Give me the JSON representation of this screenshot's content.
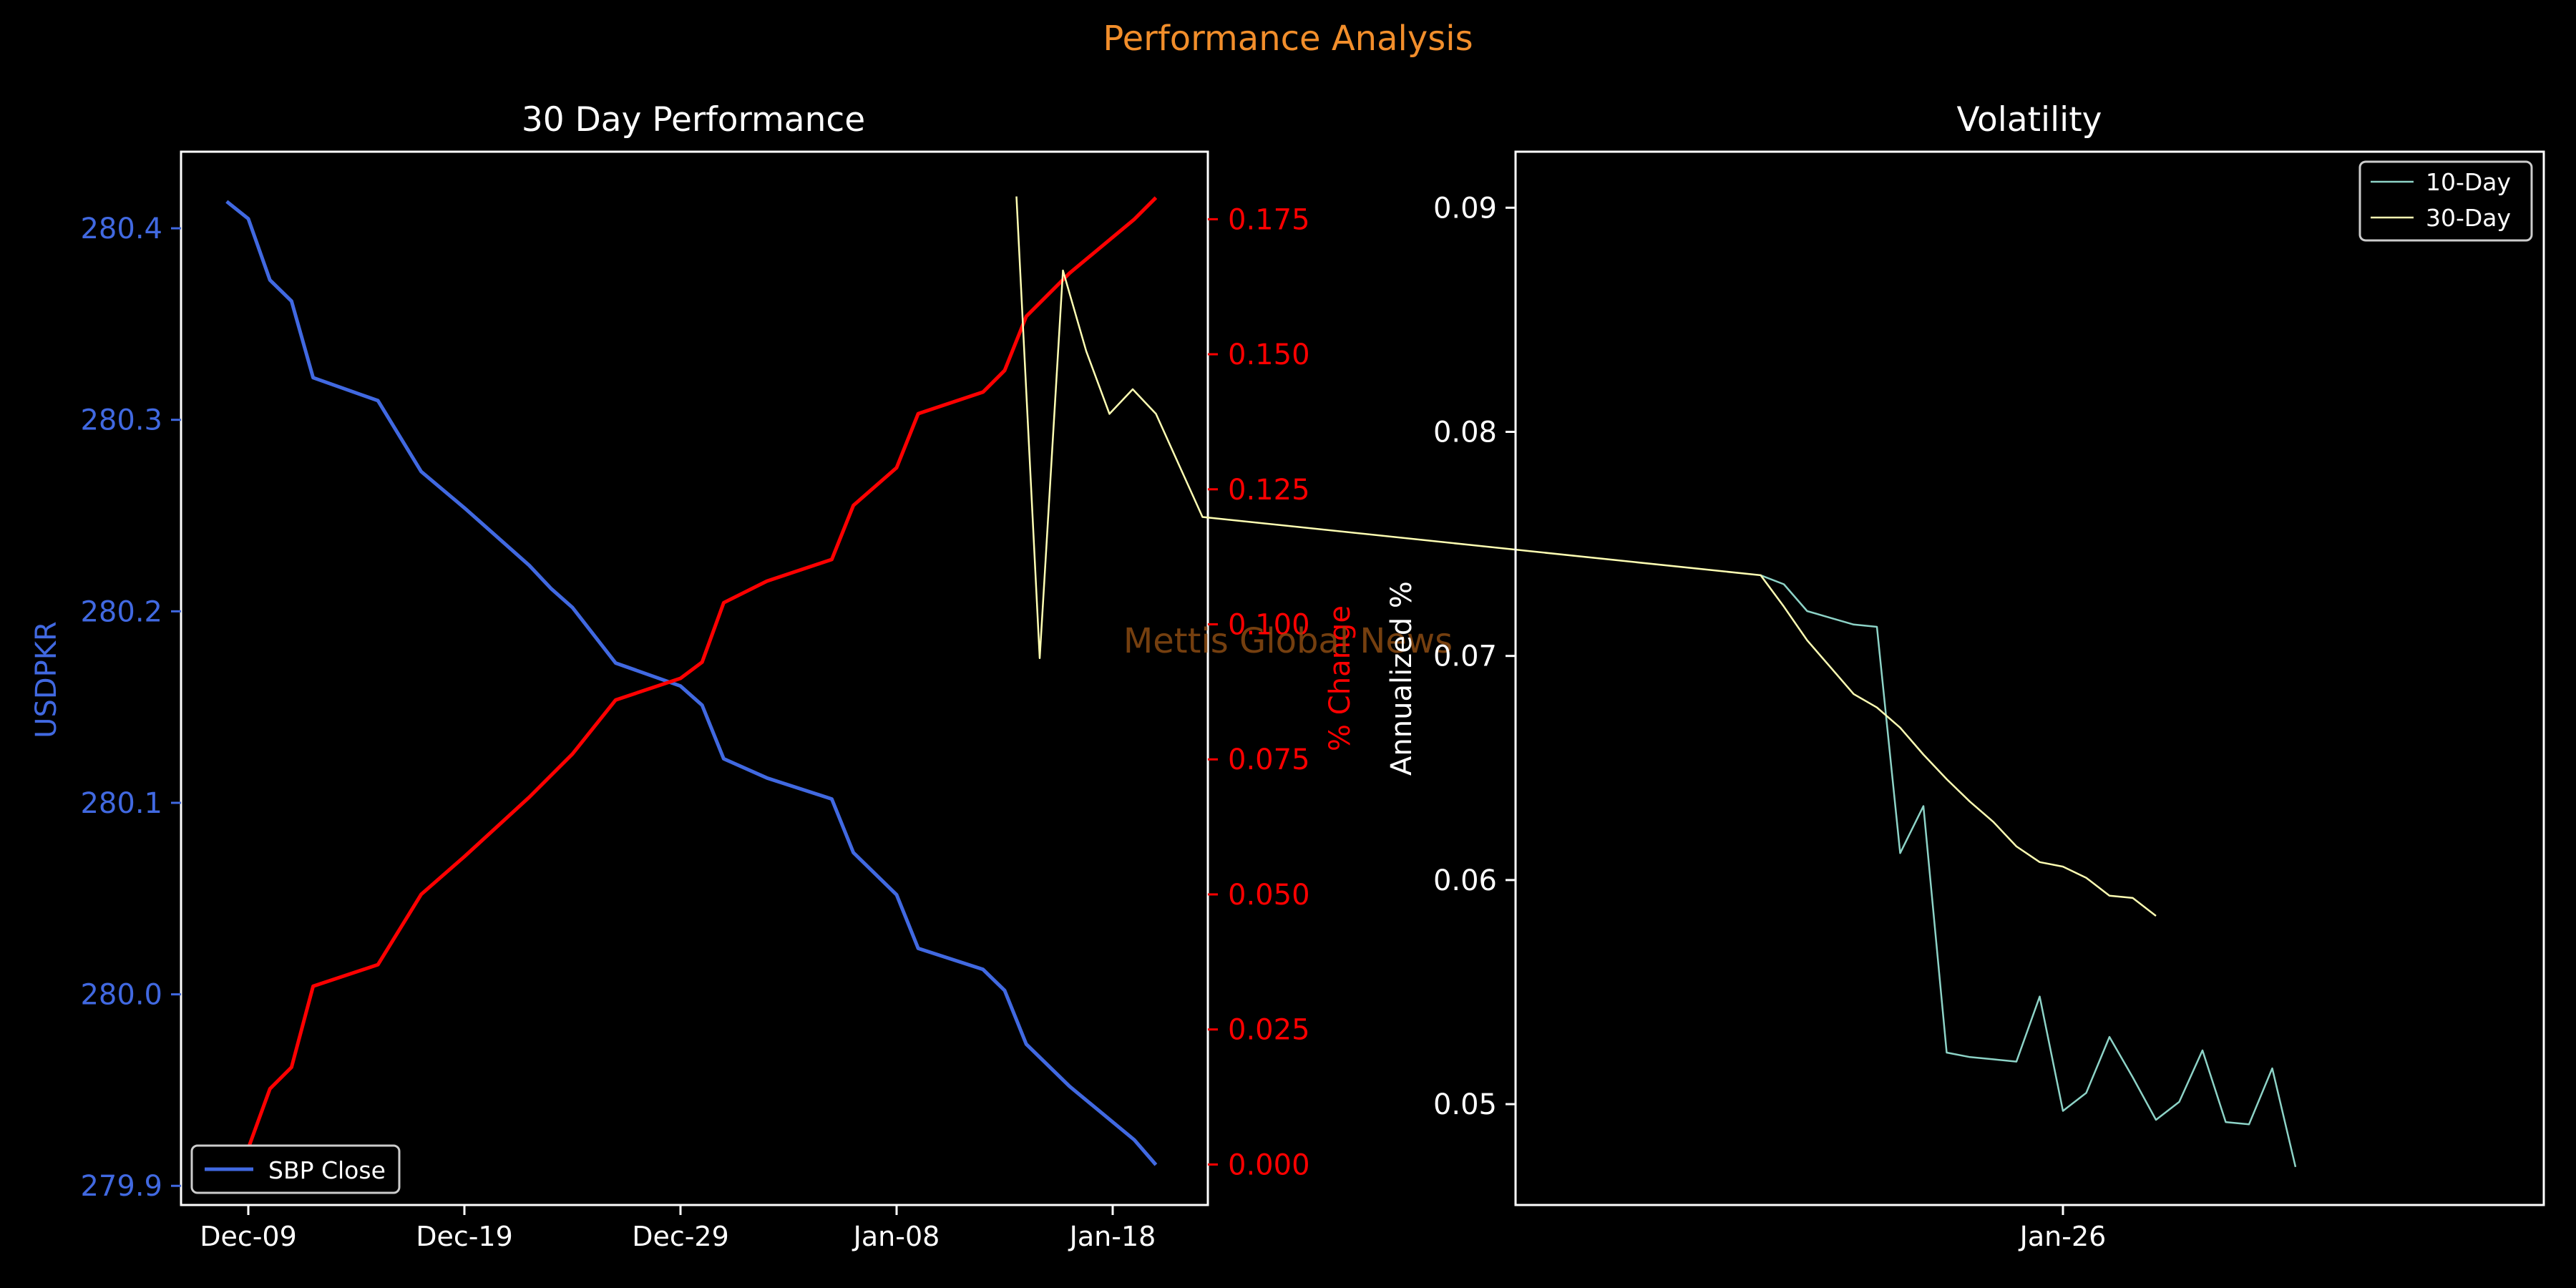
{
  "figure": {
    "suptitle": "Performance Analysis",
    "watermark": "Mettis Global News",
    "colors": {
      "background": "#000000",
      "suptitle": "#f28e2b",
      "price": "#4169e1",
      "pct": "#ff0000",
      "vol10": "#8dd3c7",
      "vol30": "#ffffb3",
      "text": "#ffffff",
      "watermark": "#8a4b12"
    }
  },
  "chart_data": [
    {
      "type": "line",
      "title": "30 Day Performance",
      "ylabel": "USDPKR",
      "ylabel_right": "% Change",
      "x_ticks": [
        "Dec-09",
        "Dec-19",
        "Dec-29",
        "Jan-08",
        "Jan-18"
      ],
      "left_axis": {
        "ylim": [
          279.89,
          280.44
        ],
        "ticks": [
          "279.9",
          "280.0",
          "280.1",
          "280.2",
          "280.3",
          "280.4"
        ]
      },
      "right_axis": {
        "ylim": [
          -0.0075,
          0.1875
        ],
        "ticks": [
          "0.000",
          "0.025",
          "0.050",
          "0.075",
          "0.100",
          "0.125",
          "0.150",
          "0.175"
        ]
      },
      "legend": {
        "placement": "lower-left",
        "entries": [
          "SBP Close"
        ]
      },
      "series": [
        {
          "name": "SBP Close",
          "axis": "left",
          "points": [
            [
              "Dec-08",
              280.414
            ],
            [
              "Dec-09",
              280.405
            ],
            [
              "Dec-10",
              280.373
            ],
            [
              "Dec-11",
              280.362
            ],
            [
              "Dec-12",
              280.322
            ],
            [
              "Dec-15",
              280.31
            ],
            [
              "Dec-17",
              280.273
            ],
            [
              "Dec-19",
              280.254
            ],
            [
              "Dec-22",
              280.224
            ],
            [
              "Dec-23",
              280.212
            ],
            [
              "Dec-24",
              280.202
            ],
            [
              "Dec-26",
              280.173
            ],
            [
              "Dec-29",
              280.161
            ],
            [
              "Dec-30",
              280.151
            ],
            [
              "Dec-31",
              280.123
            ],
            [
              "Jan-02",
              280.113
            ],
            [
              "Jan-05",
              280.102
            ],
            [
              "Jan-06",
              280.074
            ],
            [
              "Jan-08",
              280.052
            ],
            [
              "Jan-09",
              280.024
            ],
            [
              "Jan-12",
              280.013
            ],
            [
              "Jan-13",
              280.002
            ],
            [
              "Jan-14",
              279.974
            ],
            [
              "Jan-16",
              279.952
            ],
            [
              "Jan-19",
              279.924
            ],
            [
              "Jan-20",
              279.911
            ]
          ]
        },
        {
          "name": "% Change",
          "axis": "right",
          "points": [
            [
              "Dec-08",
              0.0
            ],
            [
              "Dec-09",
              0.003
            ],
            [
              "Dec-10",
              0.014
            ],
            [
              "Dec-11",
              0.018
            ],
            [
              "Dec-12",
              0.033
            ],
            [
              "Dec-15",
              0.037
            ],
            [
              "Dec-17",
              0.05
            ],
            [
              "Dec-19",
              0.057
            ],
            [
              "Dec-22",
              0.068
            ],
            [
              "Dec-23",
              0.072
            ],
            [
              "Dec-24",
              0.076
            ],
            [
              "Dec-26",
              0.086
            ],
            [
              "Dec-29",
              0.09
            ],
            [
              "Dec-30",
              0.093
            ],
            [
              "Dec-31",
              0.104
            ],
            [
              "Jan-02",
              0.108
            ],
            [
              "Jan-05",
              0.112
            ],
            [
              "Jan-06",
              0.122
            ],
            [
              "Jan-08",
              0.129
            ],
            [
              "Jan-09",
              0.139
            ],
            [
              "Jan-12",
              0.143
            ],
            [
              "Jan-13",
              0.147
            ],
            [
              "Jan-14",
              0.157
            ],
            [
              "Jan-16",
              0.165
            ],
            [
              "Jan-19",
              0.175
            ],
            [
              "Jan-20",
              0.179
            ]
          ]
        }
      ]
    },
    {
      "type": "line",
      "title": "Volatility",
      "ylabel": "Annualized %",
      "x_ticks": [
        "Jan-26"
      ],
      "ylim": [
        0.0455,
        0.0925
      ],
      "y_ticks": [
        "0.05",
        "0.06",
        "0.07",
        "0.08",
        "0.09"
      ],
      "legend": {
        "placement": "top-right",
        "entries": [
          "10-Day",
          "30-Day"
        ]
      },
      "series": [
        {
          "name": "10-Day",
          "points": [
            [
              "Jan-13",
              0.0736
            ],
            [
              "Jan-14",
              0.0732
            ],
            [
              "Jan-15",
              0.072
            ],
            [
              "Jan-16",
              0.0717
            ],
            [
              "Jan-17",
              0.0714
            ],
            [
              "Jan-18",
              0.0713
            ],
            [
              "Jan-19",
              0.0612
            ],
            [
              "Jan-20",
              0.0633
            ],
            [
              "Jan-21",
              0.0523
            ],
            [
              "Jan-22",
              0.0521
            ],
            [
              "Jan-23",
              0.052
            ],
            [
              "Jan-24",
              0.0519
            ],
            [
              "Jan-25",
              0.0548
            ],
            [
              "Jan-26",
              0.0497
            ],
            [
              "Jan-27",
              0.0505
            ],
            [
              "Jan-28",
              0.053
            ],
            [
              "Jan-29",
              0.0512
            ],
            [
              "Jan-30",
              0.0493
            ],
            [
              "Jan-31",
              0.0501
            ],
            [
              "Feb-01",
              0.0524
            ],
            [
              "Feb-02",
              0.0492
            ],
            [
              "Feb-03",
              0.0491
            ],
            [
              "Feb-04",
              0.0516
            ],
            [
              "Feb-05",
              0.0472
            ]
          ]
        },
        {
          "name": "30-Day",
          "points": [
            [
              "Dec-12",
              0.0905
            ],
            [
              "Dec-13",
              0.0699
            ],
            [
              "Dec-14",
              0.0872
            ],
            [
              "Dec-15",
              0.0836
            ],
            [
              "Dec-16",
              0.0808
            ],
            [
              "Dec-17",
              0.0819
            ],
            [
              "Dec-18",
              0.0808
            ],
            [
              "Dec-19",
              0.0785
            ],
            [
              "Dec-20",
              0.0762
            ],
            [
              "Jan-13",
              0.0736
            ],
            [
              "Jan-14",
              0.0722
            ],
            [
              "Jan-15",
              0.0707
            ],
            [
              "Jan-16",
              0.0695
            ],
            [
              "Jan-17",
              0.0683
            ],
            [
              "Jan-18",
              0.0677
            ],
            [
              "Jan-19",
              0.0668
            ],
            [
              "Jan-20",
              0.0656
            ],
            [
              "Jan-21",
              0.0645
            ],
            [
              "Jan-22",
              0.0635
            ],
            [
              "Jan-23",
              0.0626
            ],
            [
              "Jan-24",
              0.0615
            ],
            [
              "Jan-25",
              0.0608
            ],
            [
              "Jan-26",
              0.0606
            ],
            [
              "Jan-27",
              0.0601
            ],
            [
              "Jan-28",
              0.0593
            ],
            [
              "Jan-29",
              0.0592
            ],
            [
              "Jan-30",
              0.0584
            ]
          ]
        }
      ]
    }
  ]
}
